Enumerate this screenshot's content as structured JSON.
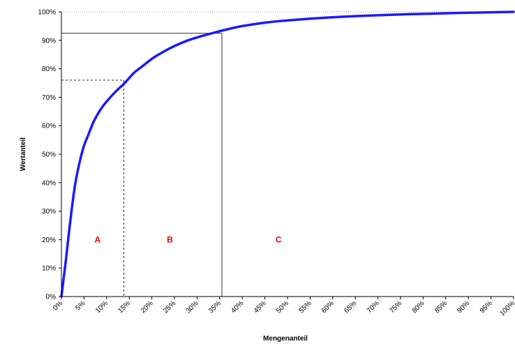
{
  "chart_data": {
    "type": "line",
    "title": "",
    "xlabel": "Mengenanteil",
    "ylabel": "Wertanteil",
    "xlim": [
      0,
      100
    ],
    "ylim": [
      0,
      100
    ],
    "x_ticks": [
      "0%",
      "5%",
      "10%",
      "15%",
      "20%",
      "25%",
      "30%",
      "35%",
      "40%",
      "45%",
      "50%",
      "55%",
      "60%",
      "65%",
      "70%",
      "75%",
      "80%",
      "85%",
      "90%",
      "95%",
      "100%"
    ],
    "y_ticks": [
      "0%",
      "10%",
      "20%",
      "30%",
      "40%",
      "50%",
      "60%",
      "70%",
      "80%",
      "90%",
      "100%"
    ],
    "grid": false,
    "series": [
      {
        "color": "#1a1aff",
        "x": [
          0,
          1,
          2,
          3,
          4,
          5,
          6,
          7,
          8,
          9,
          10,
          12,
          14,
          16,
          18,
          20,
          22,
          25,
          28,
          31,
          34,
          37,
          40,
          45,
          50,
          55,
          60,
          65,
          70,
          75,
          80,
          85,
          90,
          95,
          100
        ],
        "y": [
          0,
          13,
          27,
          39,
          47,
          53,
          57,
          61,
          64,
          66.5,
          68.5,
          72,
          75,
          78.5,
          81,
          83.5,
          85.5,
          88,
          90,
          91.5,
          92.8,
          94,
          95,
          96.2,
          97,
          97.6,
          98.1,
          98.5,
          98.8,
          99.1,
          99.3,
          99.5,
          99.7,
          99.85,
          100
        ]
      }
    ],
    "reference_lines": [
      {
        "style": "dashed",
        "x": 13.8,
        "y": 76
      },
      {
        "style": "solid",
        "x": 35.5,
        "y": 92.5
      }
    ],
    "top_reference_line": {
      "style": "dotted",
      "y": 100
    },
    "zones": [
      {
        "label": "A",
        "x": 8,
        "y": 20
      },
      {
        "label": "B",
        "x": 24,
        "y": 20
      },
      {
        "label": "C",
        "x": 48,
        "y": 20
      }
    ]
  }
}
